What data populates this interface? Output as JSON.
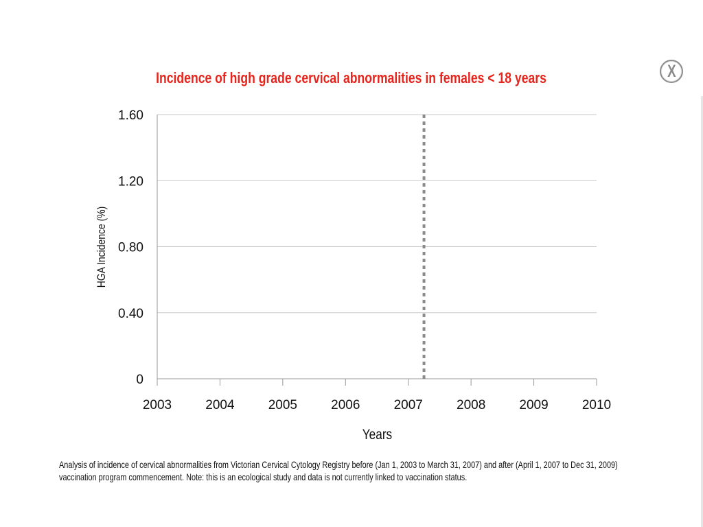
{
  "window": {
    "close_label": "X"
  },
  "chart_data": {
    "type": "line",
    "title": "Incidence of high grade cervical abnormalities in females < 18 years",
    "xlabel": "Years",
    "ylabel": "HGA Incidence (%)",
    "x_ticks": [
      "2003",
      "2004",
      "2005",
      "2006",
      "2007",
      "2008",
      "2009",
      "2010"
    ],
    "xlim": [
      2003,
      2010
    ],
    "y_ticks": [
      "0",
      "0.40",
      "0.80",
      "1.20",
      "1.60"
    ],
    "ylim": [
      0,
      1.6
    ],
    "grid": "horizontal",
    "series": [],
    "annotations": [
      {
        "type": "vertical-dashed-line",
        "x": 2007.25
      }
    ]
  },
  "footnote": "Analysis of incidence of cervical abnormalities from Victorian Cervical Cytology Registry before (Jan 1, 2003 to March 31, 2007) and after (April 1, 2007 to Dec 31, 2009) vaccination program commencement. Note: this is an ecological study and data is not currently linked to vaccination status.",
  "colors": {
    "title": "#e8251c",
    "gridline": "#c8c8c8",
    "axis": "#999999",
    "marker_line": "#8a8a8a"
  }
}
